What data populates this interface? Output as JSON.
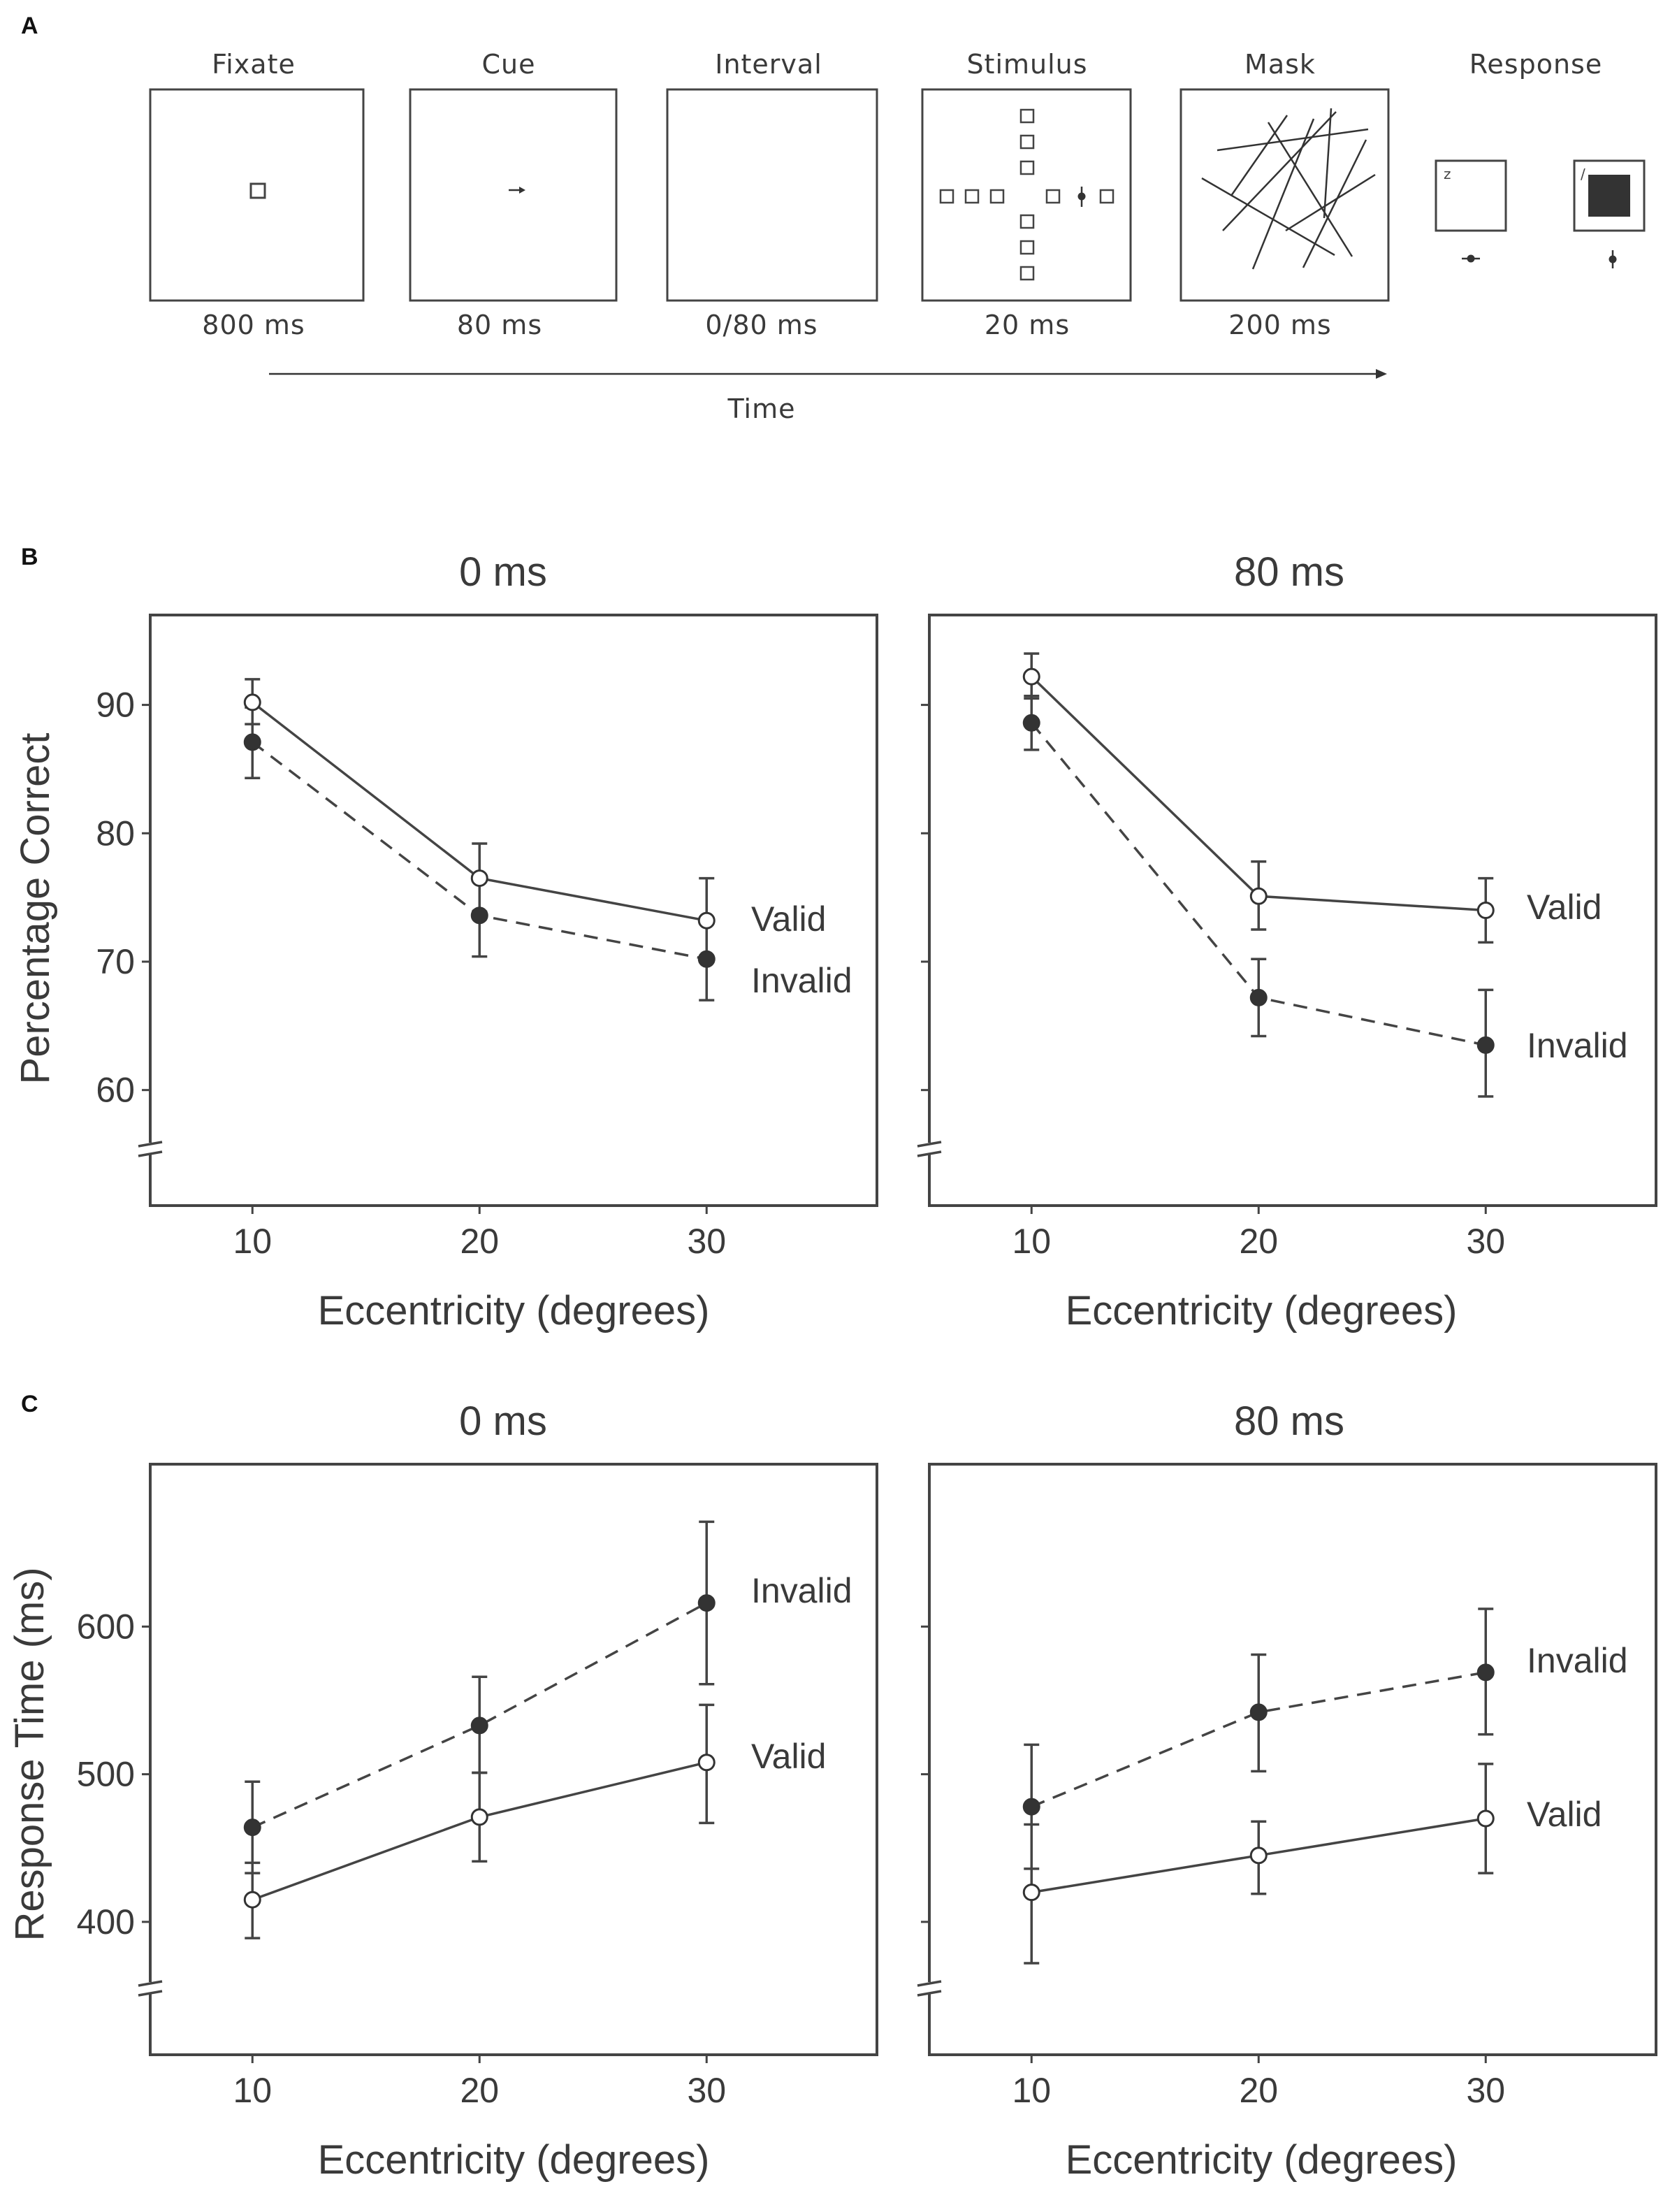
{
  "panel_a": {
    "letter": "A",
    "stages": [
      {
        "title": "Fixate",
        "duration": "800 ms"
      },
      {
        "title": "Cue",
        "duration": "80 ms"
      },
      {
        "title": "Interval",
        "duration": "0/80 ms"
      },
      {
        "title": "Stimulus",
        "duration": "20 ms"
      },
      {
        "title": "Mask",
        "duration": "200 ms"
      }
    ],
    "response": {
      "title": "Response",
      "key_left": "z",
      "key_right": "/"
    },
    "time_label": "Time",
    "colors": {
      "ink": "#444444",
      "fill_dark": "#333333"
    }
  },
  "panel_b_letter": "B",
  "panel_c_letter": "C",
  "chart_data": [
    {
      "id": "B-0ms",
      "type": "line",
      "title": "0 ms",
      "xlabel": "Eccentricity (degrees)",
      "ylabel": "Percentage Correct",
      "x": [
        10,
        20,
        30
      ],
      "xlim": [
        5.5,
        37.5
      ],
      "ylim": [
        51,
        97
      ],
      "yticks": [
        60,
        70,
        80,
        90
      ],
      "axis_break": true,
      "series": [
        {
          "name": "Valid",
          "marker": "open-circle",
          "line": "solid",
          "values": [
            90.2,
            76.5,
            73.2
          ],
          "err_lo": [
            88.5,
            73.9,
            70.0
          ],
          "err_hi": [
            92.0,
            79.2,
            76.5
          ]
        },
        {
          "name": "Invalid",
          "marker": "filled-circle",
          "line": "dashed",
          "values": [
            87.1,
            73.6,
            70.2
          ],
          "err_lo": [
            84.3,
            70.4,
            67.0
          ],
          "err_hi": [
            89.8,
            76.6,
            73.3
          ]
        }
      ]
    },
    {
      "id": "B-80ms",
      "type": "line",
      "title": "80 ms",
      "xlabel": "Eccentricity (degrees)",
      "ylabel": "",
      "x": [
        10,
        20,
        30
      ],
      "xlim": [
        5.5,
        37.5
      ],
      "ylim": [
        51,
        97
      ],
      "yticks": [
        60,
        70,
        80,
        90
      ],
      "axis_break": true,
      "series": [
        {
          "name": "Valid",
          "marker": "open-circle",
          "line": "solid",
          "values": [
            92.2,
            75.1,
            74.0
          ],
          "err_lo": [
            90.5,
            72.5,
            71.5
          ],
          "err_hi": [
            94.0,
            77.8,
            76.5
          ]
        },
        {
          "name": "Invalid",
          "marker": "filled-circle",
          "line": "dashed",
          "values": [
            88.6,
            67.2,
            63.5
          ],
          "err_lo": [
            86.5,
            64.2,
            59.5
          ],
          "err_hi": [
            90.7,
            70.2,
            67.8
          ]
        }
      ]
    },
    {
      "id": "C-0ms",
      "type": "line",
      "title": "0 ms",
      "xlabel": "Eccentricity (degrees)",
      "ylabel": "Response Time (ms)",
      "x": [
        10,
        20,
        30
      ],
      "xlim": [
        5.5,
        37.5
      ],
      "ylim": [
        310,
        710
      ],
      "yticks": [
        400,
        500,
        600
      ],
      "axis_break": true,
      "series": [
        {
          "name": "Invalid",
          "marker": "filled-circle",
          "line": "dashed",
          "values": [
            464,
            533,
            616
          ],
          "err_lo": [
            433,
            501,
            561
          ],
          "err_hi": [
            495,
            566,
            671
          ]
        },
        {
          "name": "Valid",
          "marker": "open-circle",
          "line": "solid",
          "values": [
            415,
            471,
            508
          ],
          "err_lo": [
            389,
            441,
            467
          ],
          "err_hi": [
            440,
            501,
            547
          ]
        }
      ]
    },
    {
      "id": "C-80ms",
      "type": "line",
      "title": "80 ms",
      "xlabel": "Eccentricity (degrees)",
      "ylabel": "",
      "x": [
        10,
        20,
        30
      ],
      "xlim": [
        5.5,
        37.5
      ],
      "ylim": [
        310,
        710
      ],
      "yticks": [
        400,
        500,
        600
      ],
      "axis_break": true,
      "series": [
        {
          "name": "Invalid",
          "marker": "filled-circle",
          "line": "dashed",
          "values": [
            478,
            542,
            569
          ],
          "err_lo": [
            436,
            502,
            527
          ],
          "err_hi": [
            520,
            581,
            612
          ]
        },
        {
          "name": "Valid",
          "marker": "open-circle",
          "line": "solid",
          "values": [
            420,
            445,
            470
          ],
          "err_lo": [
            372,
            419,
            433
          ],
          "err_hi": [
            466,
            468,
            507
          ]
        }
      ]
    }
  ]
}
